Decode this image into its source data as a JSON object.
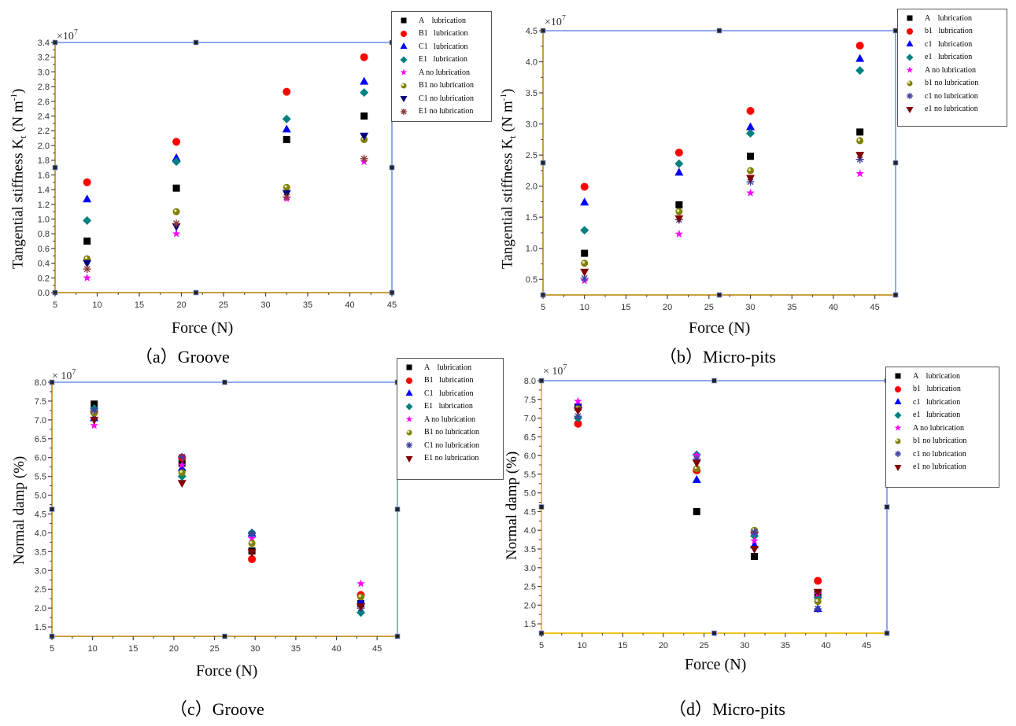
{
  "chart_data": [
    {
      "id": "a",
      "type": "scatter",
      "caption": "（a）Groove",
      "xlabel": "Force (N)",
      "ylabel": "Tangential stiffness Kt (N m-1)",
      "ylabel_main": "Tangential stiffness K",
      "ylabel_sub": "t",
      "ylabel_unit": " (N m",
      "ylabel_sup": "-1",
      "ylabel_close": ")",
      "multiplier": "×10",
      "multiplier_exp": "7",
      "xlim": [
        5,
        45
      ],
      "ylim": [
        0,
        3.4
      ],
      "xticks": [
        5,
        10,
        15,
        20,
        25,
        30,
        35,
        40,
        45
      ],
      "yticks": [
        0.0,
        0.2,
        0.4,
        0.6,
        0.8,
        1.0,
        1.2,
        1.4,
        1.6,
        1.8,
        2.0,
        2.2,
        2.4,
        2.6,
        2.8,
        3.0,
        3.2,
        3.4
      ],
      "ytick_decimals": 1,
      "legend_position": "top-right-outside",
      "series": [
        {
          "name": "A    lubrication",
          "marker": "square",
          "color": "#000000",
          "x": [
            8.8,
            19.4,
            32.5,
            41.7
          ],
          "y": [
            0.7,
            1.42,
            2.08,
            2.4
          ]
        },
        {
          "name": "B1   lubrication",
          "marker": "circle",
          "color": "#ff0000",
          "x": [
            8.8,
            19.4,
            32.5,
            41.7
          ],
          "y": [
            1.5,
            2.05,
            2.73,
            3.2
          ]
        },
        {
          "name": "C1   lubrication",
          "marker": "triangle-up",
          "color": "#0000ff",
          "x": [
            8.8,
            19.4,
            32.5,
            41.7
          ],
          "y": [
            1.27,
            1.83,
            2.22,
            2.87
          ]
        },
        {
          "name": "E1   lubrication",
          "marker": "diamond",
          "color": "#008080",
          "x": [
            8.8,
            19.4,
            32.5,
            41.7
          ],
          "y": [
            0.98,
            1.78,
            2.36,
            2.72
          ]
        },
        {
          "name": "A no lubrication",
          "marker": "star",
          "color": "#ff00ff",
          "x": [
            8.8,
            19.4,
            32.5,
            41.7
          ],
          "y": [
            0.2,
            0.8,
            1.28,
            1.78
          ]
        },
        {
          "name": "B1 no lubrication",
          "marker": "ball",
          "color": "#808000",
          "x": [
            8.8,
            19.4,
            32.5,
            41.7
          ],
          "y": [
            0.46,
            1.1,
            1.43,
            2.08
          ]
        },
        {
          "name": "C1 no lubrication",
          "marker": "triangle-down",
          "color": "#000080",
          "x": [
            8.8,
            19.4,
            32.5,
            41.7
          ],
          "y": [
            0.4,
            0.9,
            1.35,
            2.13
          ]
        },
        {
          "name": "E1 no lubrication",
          "marker": "asterisk",
          "color": "#8b3a3a",
          "x": [
            8.8,
            19.4,
            32.5,
            41.7
          ],
          "y": [
            0.32,
            0.94,
            1.3,
            1.82
          ]
        }
      ]
    },
    {
      "id": "b",
      "type": "scatter",
      "caption": "（b）Micro-pits",
      "xlabel": "Force (N)",
      "ylabel": "Tangential stiffness Kt (N m-1)",
      "ylabel_main": "Tangential stiffness K",
      "ylabel_sub": "t",
      "ylabel_unit": " (N m",
      "ylabel_sup": "-1",
      "ylabel_close": ")",
      "multiplier": "×10",
      "multiplier_exp": "7",
      "xlim": [
        5,
        47.5
      ],
      "ylim": [
        0.25,
        4.5
      ],
      "xticks": [
        5,
        10,
        15,
        20,
        25,
        30,
        35,
        40,
        45
      ],
      "yticks": [
        0.5,
        1.0,
        1.5,
        2.0,
        2.5,
        3.0,
        3.5,
        4.0,
        4.5
      ],
      "ytick_decimals": 1,
      "legend_position": "top-right-outside",
      "series": [
        {
          "name": "A    lubrication",
          "marker": "square",
          "color": "#000000",
          "x": [
            10,
            21.4,
            30,
            43.2
          ],
          "y": [
            0.92,
            1.7,
            2.48,
            2.87
          ]
        },
        {
          "name": "b1   lubrication",
          "marker": "circle",
          "color": "#ff0000",
          "x": [
            10,
            21.4,
            30,
            43.2
          ],
          "y": [
            1.99,
            2.54,
            3.21,
            4.26
          ]
        },
        {
          "name": "c1   lubrication",
          "marker": "triangle-up",
          "color": "#0000ff",
          "x": [
            10,
            21.4,
            30,
            43.2
          ],
          "y": [
            1.74,
            2.22,
            2.95,
            4.05
          ]
        },
        {
          "name": "e1   lubrication",
          "marker": "diamond",
          "color": "#008080",
          "x": [
            10,
            21.4,
            30,
            43.2
          ],
          "y": [
            1.29,
            2.36,
            2.85,
            3.86
          ]
        },
        {
          "name": "A no lubrication",
          "marker": "star",
          "color": "#ff00ff",
          "x": [
            10,
            21.4,
            30,
            43.2
          ],
          "y": [
            0.48,
            1.23,
            1.89,
            2.2
          ]
        },
        {
          "name": "b1 no lubrication",
          "marker": "ball",
          "color": "#808000",
          "x": [
            10,
            21.4,
            30,
            43.2
          ],
          "y": [
            0.76,
            1.59,
            2.25,
            2.73
          ]
        },
        {
          "name": "c1 no lubrication",
          "marker": "asterisk",
          "color": "#4040a0",
          "x": [
            10,
            21.4,
            30,
            43.2
          ],
          "y": [
            0.52,
            1.46,
            2.07,
            2.43
          ]
        },
        {
          "name": "e1 no lubrication",
          "marker": "triangle-down",
          "color": "#800000",
          "x": [
            10,
            21.4,
            30,
            43.2
          ],
          "y": [
            0.62,
            1.48,
            2.13,
            2.5
          ]
        }
      ]
    },
    {
      "id": "c",
      "type": "scatter",
      "caption": "（c）Groove",
      "xlabel": "Force (N)",
      "ylabel": "Normal damp (%)",
      "multiplier": "× 10",
      "multiplier_exp": "7",
      "xlim": [
        5,
        47.5
      ],
      "ylim": [
        1.25,
        8.0
      ],
      "xticks": [
        5,
        10,
        15,
        20,
        25,
        30,
        35,
        40,
        45
      ],
      "yticks": [
        1.5,
        2.0,
        2.5,
        3.0,
        3.5,
        4.0,
        4.5,
        5.0,
        5.5,
        6.0,
        6.5,
        7.0,
        7.5,
        8.0
      ],
      "ytick_decimals": 1,
      "legend_position": "top-right-outside",
      "series": [
        {
          "name": "A    lubrication",
          "marker": "square",
          "color": "#000000",
          "x": [
            10.2,
            21,
            29.6,
            43
          ],
          "y": [
            7.42,
            5.85,
            3.52,
            2.12
          ]
        },
        {
          "name": "B1   lubrication",
          "marker": "circle",
          "color": "#ff0000",
          "x": [
            10.2,
            21,
            29.6,
            43
          ],
          "y": [
            7.2,
            6.0,
            3.3,
            2.35
          ]
        },
        {
          "name": "C1   lubrication",
          "marker": "triangle-up",
          "color": "#0000ff",
          "x": [
            10.2,
            21,
            29.6,
            43
          ],
          "y": [
            7.05,
            5.72,
            3.98,
            2.18
          ]
        },
        {
          "name": "E1   lubrication",
          "marker": "diamond",
          "color": "#008080",
          "x": [
            10.2,
            21,
            29.6,
            43
          ],
          "y": [
            7.3,
            5.5,
            4.0,
            1.88
          ]
        },
        {
          "name": "A no lubrication",
          "marker": "star",
          "color": "#ff00ff",
          "x": [
            10.2,
            21,
            29.6,
            43
          ],
          "y": [
            6.85,
            5.8,
            3.85,
            2.65
          ]
        },
        {
          "name": "B1 no lubrication",
          "marker": "ball",
          "color": "#808000",
          "x": [
            10.2,
            21,
            29.6,
            43
          ],
          "y": [
            7.18,
            5.6,
            3.72,
            2.3
          ]
        },
        {
          "name": "C1 no lubrication",
          "marker": "asterisk",
          "color": "#4040a0",
          "x": [
            10.2,
            21,
            29.6,
            43
          ],
          "y": [
            7.25,
            6.02,
            3.98,
            2.0
          ]
        },
        {
          "name": "E1 no lubrication",
          "marker": "triangle-down",
          "color": "#800000",
          "x": [
            10.2,
            21,
            29.6,
            43
          ],
          "y": [
            7.0,
            5.32,
            3.48,
            2.05
          ]
        }
      ]
    },
    {
      "id": "d",
      "type": "scatter",
      "caption": "（d）Micro-pits",
      "xlabel": "Force (N)",
      "ylabel": "Normal damp (%)",
      "multiplier": "× 10",
      "multiplier_exp": "7",
      "xlim": [
        5,
        47.5
      ],
      "ylim": [
        1.25,
        8.0
      ],
      "xticks": [
        5,
        10,
        15,
        20,
        25,
        30,
        35,
        40,
        45
      ],
      "yticks": [
        1.5,
        2.0,
        2.5,
        3.0,
        3.5,
        4.0,
        4.5,
        5.0,
        5.5,
        6.0,
        6.5,
        7.0,
        7.5,
        8.0
      ],
      "ytick_decimals": 1,
      "legend_position": "top-right-outside",
      "series": [
        {
          "name": "A    lubrication",
          "marker": "square",
          "color": "#000000",
          "x": [
            9.5,
            24.1,
            31.2,
            39
          ],
          "y": [
            7.3,
            4.5,
            3.3,
            2.3
          ]
        },
        {
          "name": "b1   lubrication",
          "marker": "circle",
          "color": "#ff0000",
          "x": [
            9.5,
            24.1,
            31.2,
            39
          ],
          "y": [
            6.85,
            5.6,
            3.95,
            2.65
          ]
        },
        {
          "name": "c1   lubrication",
          "marker": "triangle-up",
          "color": "#0000ff",
          "x": [
            9.5,
            24.1,
            31.2,
            39
          ],
          "y": [
            7.35,
            5.35,
            3.6,
            1.9
          ]
        },
        {
          "name": "e1   lubrication",
          "marker": "diamond",
          "color": "#008080",
          "x": [
            9.5,
            24.1,
            31.2,
            39
          ],
          "y": [
            7.0,
            6.02,
            3.85,
            2.2
          ]
        },
        {
          "name": "A no lubrication",
          "marker": "star",
          "color": "#ff00ff",
          "x": [
            9.5,
            24.1,
            31.2,
            39
          ],
          "y": [
            7.45,
            6.0,
            3.72,
            2.3
          ]
        },
        {
          "name": "b1 no lubrication",
          "marker": "ball",
          "color": "#808000",
          "x": [
            9.5,
            24.1,
            31.2,
            39
          ],
          "y": [
            7.25,
            5.65,
            4.0,
            2.1
          ]
        },
        {
          "name": "c1 no lubrication",
          "marker": "asterisk",
          "color": "#4040a0",
          "x": [
            9.5,
            24.1,
            31.2,
            39
          ],
          "y": [
            7.05,
            5.9,
            3.95,
            1.9
          ]
        },
        {
          "name": "e1 no lubrication",
          "marker": "triangle-down",
          "color": "#800000",
          "x": [
            9.5,
            24.1,
            31.2,
            39
          ],
          "y": [
            7.2,
            5.8,
            3.5,
            2.35
          ]
        }
      ]
    }
  ]
}
